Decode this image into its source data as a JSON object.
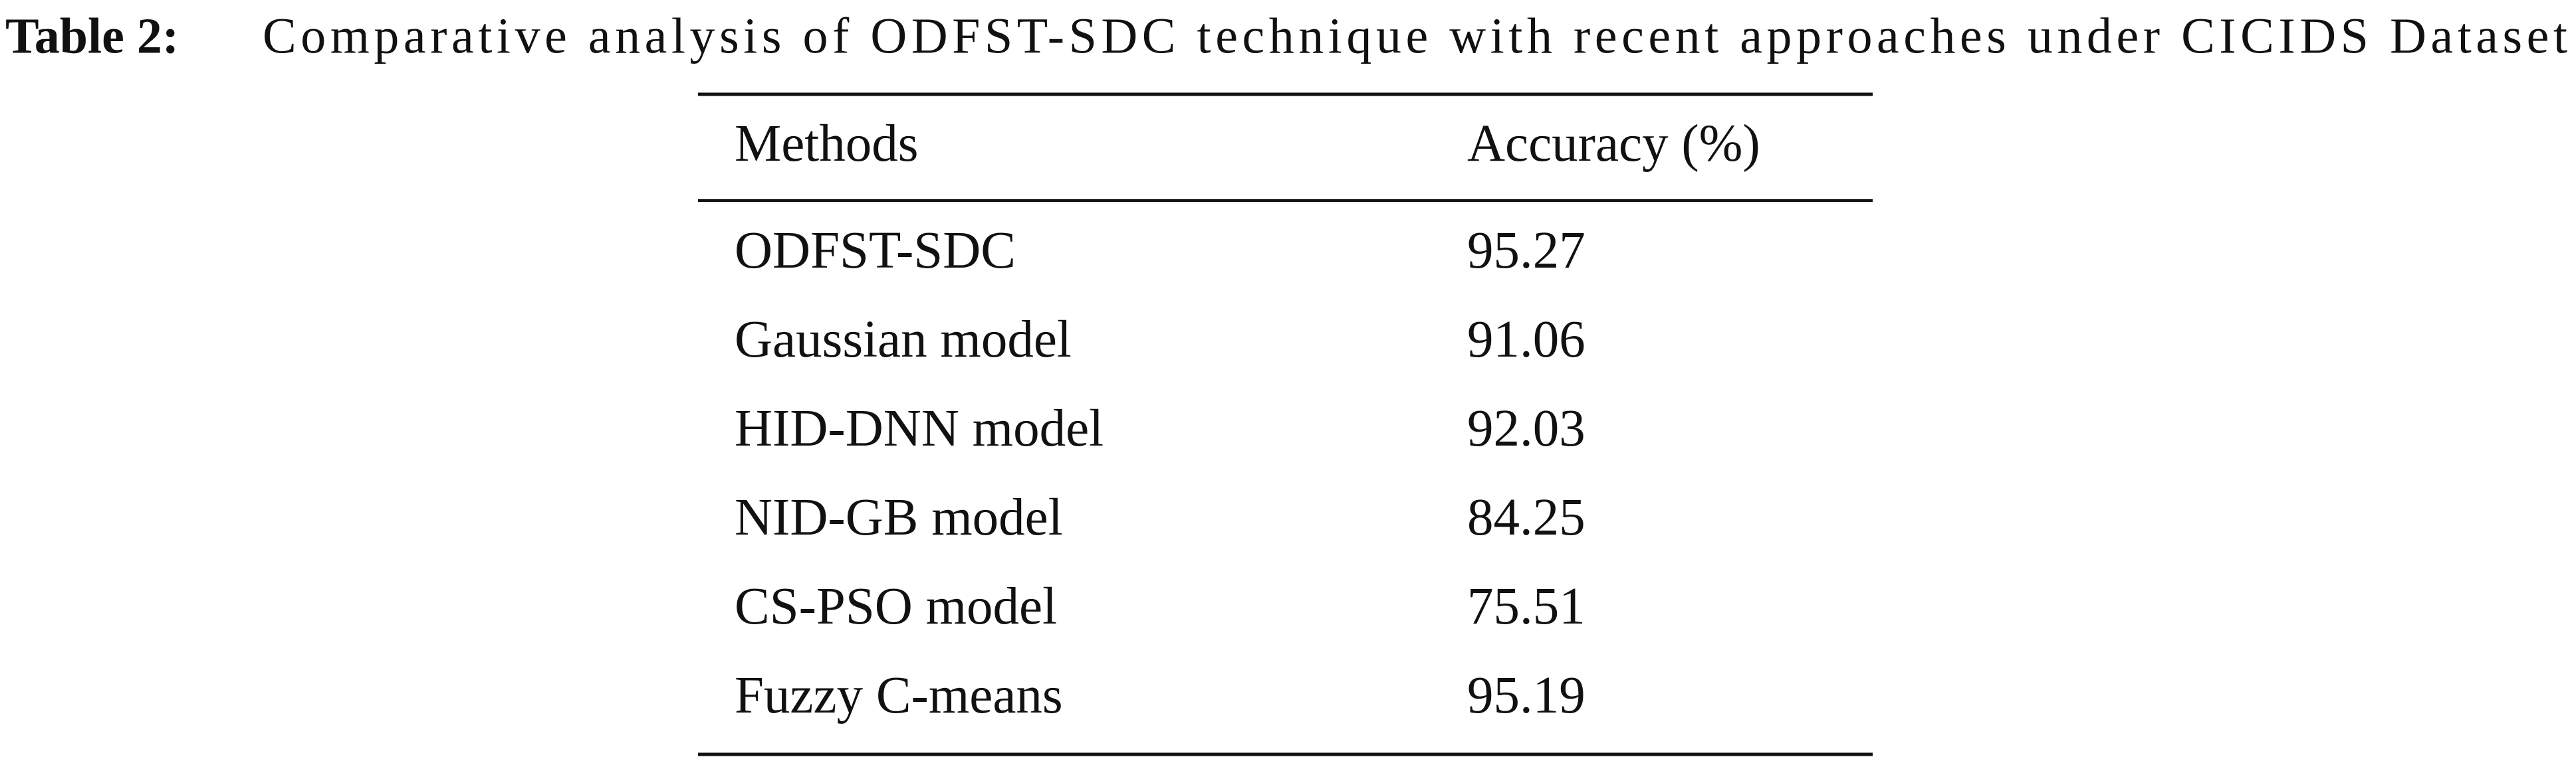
{
  "caption": {
    "label": "Table 2:",
    "text": "Comparative analysis of ODFST-SDC technique with recent approaches under CICIDS Dataset"
  },
  "table": {
    "header": [
      "Methods",
      "Accuracy (%)"
    ],
    "rows": [
      [
        "ODFST-SDC",
        95.27
      ],
      [
        "Gaussian model",
        91.06
      ],
      [
        "HID-DNN model",
        92.03
      ],
      [
        "NID-GB model",
        84.25
      ],
      [
        "CS-PSO model",
        75.51
      ],
      [
        "Fuzzy C-means",
        95.19
      ]
    ]
  }
}
